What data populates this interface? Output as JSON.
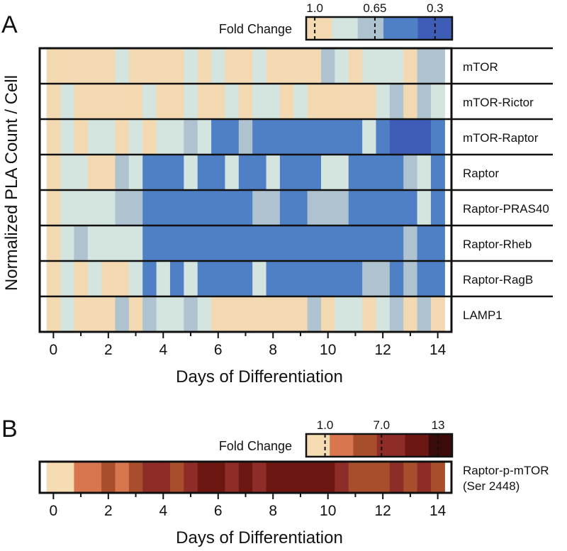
{
  "chart_data": [
    {
      "panel_label": "A",
      "type": "heatmap",
      "ylabel": "Normalized PLA Count / Cell",
      "xlabel": "Days of Differentiation",
      "x_ticks": [
        "0",
        "2",
        "4",
        "6",
        "8",
        "10",
        "12",
        "14"
      ],
      "x_tick_values": [
        0,
        2,
        4,
        6,
        8,
        10,
        12,
        14
      ],
      "x_range": [
        -0.5,
        14.5
      ],
      "colorbar": {
        "title": "Fold Change",
        "tick_labels": [
          "1.0",
          "0.65",
          "0.3"
        ],
        "tick_values": [
          1.0,
          0.65,
          0.3
        ],
        "range": [
          1.05,
          0.2
        ],
        "bins": [
          {
            "range": [
              1.05,
              0.9
            ],
            "color": "#f2d9b1"
          },
          {
            "range": [
              0.9,
              0.75
            ],
            "color": "#d4e4df"
          },
          {
            "range": [
              0.75,
              0.6
            ],
            "color": "#aec3cf"
          },
          {
            "range": [
              0.6,
              0.4
            ],
            "color": "#4f7fc4"
          },
          {
            "range": [
              0.4,
              0.2
            ],
            "color": "#3f5db6"
          }
        ]
      },
      "days": [
        0,
        0.5,
        1,
        1.5,
        2,
        2.5,
        3,
        3.5,
        4,
        4.5,
        5,
        5.5,
        6,
        6.5,
        7,
        7.5,
        8,
        8.5,
        9,
        9.5,
        10,
        10.5,
        11,
        11.5,
        12,
        12.5,
        13,
        13.5,
        14
      ],
      "series": [
        {
          "name": "mTOR",
          "values": [
            1,
            1,
            1,
            1,
            1,
            0.8,
            1,
            1,
            1,
            1,
            0.8,
            1,
            0.8,
            1,
            1,
            0.8,
            1,
            1,
            1,
            1,
            0.7,
            0.8,
            1,
            0.8,
            0.8,
            0.8,
            1,
            0.7,
            0.7
          ]
        },
        {
          "name": "mTOR-Rictor",
          "values": [
            1,
            0.8,
            1,
            1,
            1,
            1,
            1,
            0.8,
            1,
            1,
            0.8,
            1,
            1,
            0.8,
            1,
            0.8,
            0.8,
            1,
            0.8,
            1,
            1,
            1,
            1,
            1,
            0.8,
            0.7,
            1,
            0.7,
            0.8
          ]
        },
        {
          "name": "mTOR-Raptor",
          "values": [
            1,
            0.8,
            1,
            0.8,
            0.8,
            1,
            0.8,
            1,
            0.8,
            0.8,
            0.7,
            0.8,
            0.5,
            0.5,
            0.7,
            0.5,
            0.5,
            0.5,
            0.5,
            0.5,
            0.4,
            0.5,
            0.5,
            0.8,
            0.5,
            0.3,
            0.3,
            0.3,
            0.5
          ]
        },
        {
          "name": "Raptor",
          "values": [
            1,
            0.8,
            0.8,
            1,
            1,
            0.7,
            0.8,
            0.5,
            0.5,
            0.5,
            0.8,
            0.5,
            0.5,
            0.8,
            0.5,
            0.5,
            0.8,
            0.5,
            0.5,
            0.5,
            0.8,
            0.8,
            0.5,
            0.5,
            0.5,
            0.4,
            0.7,
            0.8,
            0.5
          ]
        },
        {
          "name": "Raptor-PRAS40",
          "values": [
            1,
            0.8,
            0.8,
            0.8,
            0.8,
            0.7,
            0.7,
            0.5,
            0.4,
            0.4,
            0.5,
            0.5,
            0.5,
            0.5,
            0.5,
            0.7,
            0.7,
            0.5,
            0.5,
            0.7,
            0.7,
            0.7,
            0.5,
            0.5,
            0.5,
            0.5,
            0.5,
            0.8,
            0.5
          ]
        },
        {
          "name": "Raptor-Rheb",
          "values": [
            1,
            0.8,
            0.7,
            0.8,
            0.8,
            0.8,
            0.8,
            0.5,
            0.5,
            0.4,
            0.5,
            0.4,
            0.4,
            0.5,
            0.5,
            0.5,
            0.5,
            0.4,
            0.5,
            0.5,
            0.5,
            0.4,
            0.5,
            0.5,
            0.5,
            0.5,
            0.7,
            0.5,
            0.4
          ]
        },
        {
          "name": "Raptor-RagB",
          "values": [
            1,
            0.8,
            1,
            0.8,
            1,
            1,
            0.8,
            0.5,
            0.8,
            0.5,
            0.8,
            0.4,
            0.5,
            0.4,
            0.5,
            0.8,
            0.5,
            0.5,
            0.5,
            0.4,
            0.4,
            0.4,
            0.5,
            0.7,
            0.7,
            0.5,
            0.7,
            0.5,
            0.5
          ]
        },
        {
          "name": "LAMP1",
          "values": [
            1,
            0.8,
            1,
            1,
            1,
            0.7,
            1,
            0.7,
            0.8,
            0.8,
            0.7,
            0.8,
            1,
            1,
            1,
            1,
            1,
            1,
            1,
            0.7,
            1,
            0.8,
            0.8,
            1,
            0.8,
            0.7,
            1,
            0.7,
            1
          ]
        }
      ]
    },
    {
      "panel_label": "B",
      "type": "heatmap",
      "xlabel": "Days of Differentiation",
      "x_ticks": [
        "0",
        "2",
        "4",
        "6",
        "8",
        "10",
        "12",
        "14"
      ],
      "x_tick_values": [
        0,
        2,
        4,
        6,
        8,
        10,
        12,
        14
      ],
      "x_range": [
        -0.5,
        14.5
      ],
      "colorbar": {
        "title": "Fold Change",
        "tick_labels": [
          "1.0",
          "7.0",
          "13"
        ],
        "tick_values": [
          1.0,
          7.0,
          13
        ],
        "range": [
          -1,
          14.5
        ],
        "bins": [
          {
            "range": [
              -1,
              1.5
            ],
            "color": "#f5dcb3"
          },
          {
            "range": [
              1.5,
              4.0
            ],
            "color": "#d7764f"
          },
          {
            "range": [
              4.0,
              6.5
            ],
            "color": "#a84e2c"
          },
          {
            "range": [
              6.5,
              9.5
            ],
            "color": "#8e2d28"
          },
          {
            "range": [
              9.5,
              12
            ],
            "color": "#6d1713"
          },
          {
            "range": [
              12,
              14.5
            ],
            "color": "#3a0b08"
          }
        ]
      },
      "days": [
        0,
        0.5,
        1,
        1.5,
        2,
        2.5,
        3,
        3.5,
        4,
        4.5,
        5,
        5.5,
        6,
        6.5,
        7,
        7.5,
        8,
        8.5,
        9,
        9.5,
        10,
        10.5,
        11,
        11.5,
        12,
        12.5,
        13,
        13.5,
        14
      ],
      "series": [
        {
          "name": "Raptor-p-mTOR",
          "name_line2": "(Ser 2448)",
          "values": [
            1,
            1,
            3,
            3,
            5,
            3,
            5,
            8,
            8,
            5,
            8,
            11,
            11,
            8,
            11,
            8,
            11,
            11,
            11,
            11,
            11,
            8,
            5,
            5,
            5,
            8,
            5,
            8,
            5
          ]
        }
      ]
    }
  ]
}
